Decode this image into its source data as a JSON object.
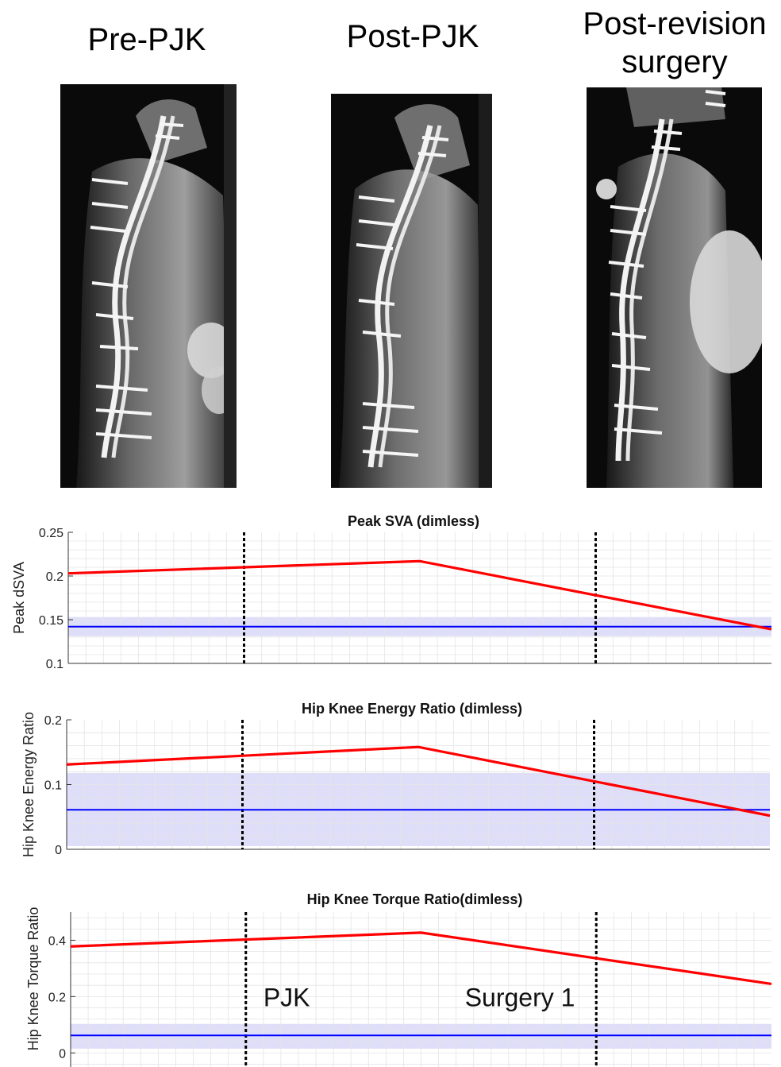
{
  "panels": [
    {
      "title_lines": [
        "Pre-PJK"
      ]
    },
    {
      "title_lines": [
        "Post-PJK"
      ]
    },
    {
      "title_lines": [
        "Post-revision",
        "surgery"
      ]
    }
  ],
  "colors": {
    "patient_line": "#ff0000",
    "normal_mean": "#0000ff",
    "normal_band": "#d8d8f8",
    "event_line": "#000000"
  },
  "chart_data": [
    {
      "type": "line",
      "title": "Peak SVA (dimless)",
      "ylabel": "Peak dSVA",
      "ylim": [
        0.1,
        0.25
      ],
      "yticks": [
        0.1,
        0.15,
        0.2,
        0.25
      ],
      "ytick_labels": [
        "0.1",
        "0.15",
        "0.2",
        "0.25"
      ],
      "xlim": [
        0,
        4
      ],
      "series": [
        {
          "x": [
            0,
            2,
            4
          ],
          "y": [
            0.203,
            0.217,
            0.139
          ]
        },
        {
          "x": [
            0,
            4
          ],
          "y": [
            0.142,
            0.142
          ]
        }
      ],
      "normal_band": [
        0.131,
        0.153
      ],
      "event_lines": [
        1,
        3
      ],
      "annotations": []
    },
    {
      "type": "line",
      "title": "Hip Knee Energy Ratio (dimless)",
      "ylabel": "Hip Knee Energy Ratio",
      "ylim": [
        0,
        0.2
      ],
      "yticks": [
        0,
        0.1,
        0.2
      ],
      "ytick_labels": [
        "0",
        "0.1",
        "0.2"
      ],
      "xlim": [
        0,
        4
      ],
      "series": [
        {
          "x": [
            0,
            2,
            4
          ],
          "y": [
            0.131,
            0.158,
            0.052
          ]
        },
        {
          "x": [
            0,
            4
          ],
          "y": [
            0.061,
            0.061
          ]
        }
      ],
      "normal_band": [
        0.005,
        0.118
      ],
      "event_lines": [
        1,
        3
      ],
      "annotations": []
    },
    {
      "type": "line",
      "title": "Hip Knee Torque Ratio(dimless)",
      "ylabel": "Hip Knee Torque Ratio",
      "ylim": [
        -0.05,
        0.5
      ],
      "yticks": [
        0,
        0.2,
        0.4
      ],
      "ytick_labels": [
        "0",
        "0.2",
        "0.4"
      ],
      "xlim": [
        0,
        4
      ],
      "series": [
        {
          "x": [
            0,
            2,
            4
          ],
          "y": [
            0.378,
            0.427,
            0.245
          ]
        },
        {
          "x": [
            0,
            4
          ],
          "y": [
            0.062,
            0.062
          ]
        }
      ],
      "normal_band": [
        0.015,
        0.103
      ],
      "event_lines": [
        1,
        3
      ],
      "annotations": [
        {
          "text": "PJK",
          "x": 1.1,
          "y": 0.2
        },
        {
          "text": "Surgery 1",
          "x": 2.25,
          "y": 0.2
        }
      ]
    }
  ]
}
